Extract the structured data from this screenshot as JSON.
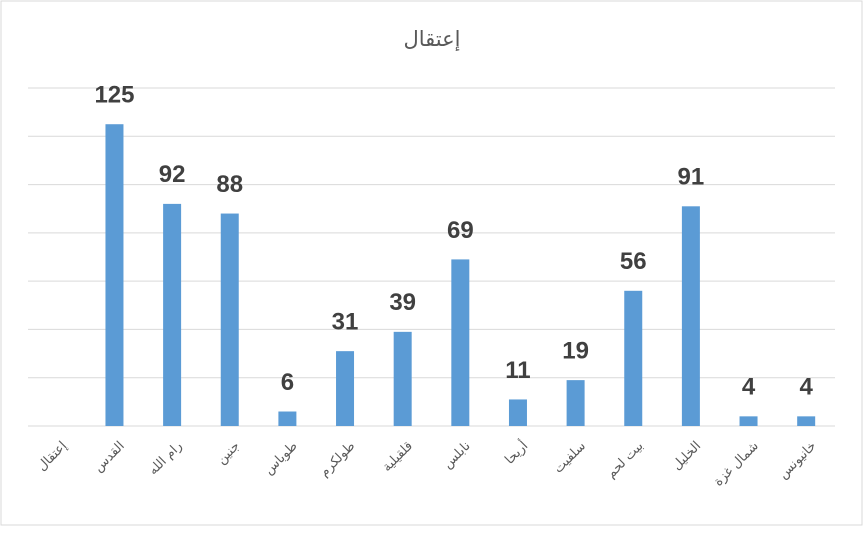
{
  "chart_data": {
    "type": "bar",
    "title": "إعتقال",
    "categories": [
      "إعتقال",
      "القدس",
      "رام الله",
      "جنين",
      "طوباس",
      "طولكرم",
      "قلقيلية",
      "نابلس",
      "أريحا",
      "سلفيت",
      "بيت لحم",
      "الخليل",
      "شمال غزة",
      "خانيونس"
    ],
    "values": [
      null,
      125,
      92,
      88,
      6,
      31,
      39,
      69,
      11,
      19,
      56,
      91,
      4,
      4
    ],
    "color": "#5b9bd5",
    "ylim": [
      0,
      140
    ],
    "yticks": [
      0,
      20,
      40,
      60,
      80,
      100,
      120,
      140
    ],
    "grid": true
  }
}
